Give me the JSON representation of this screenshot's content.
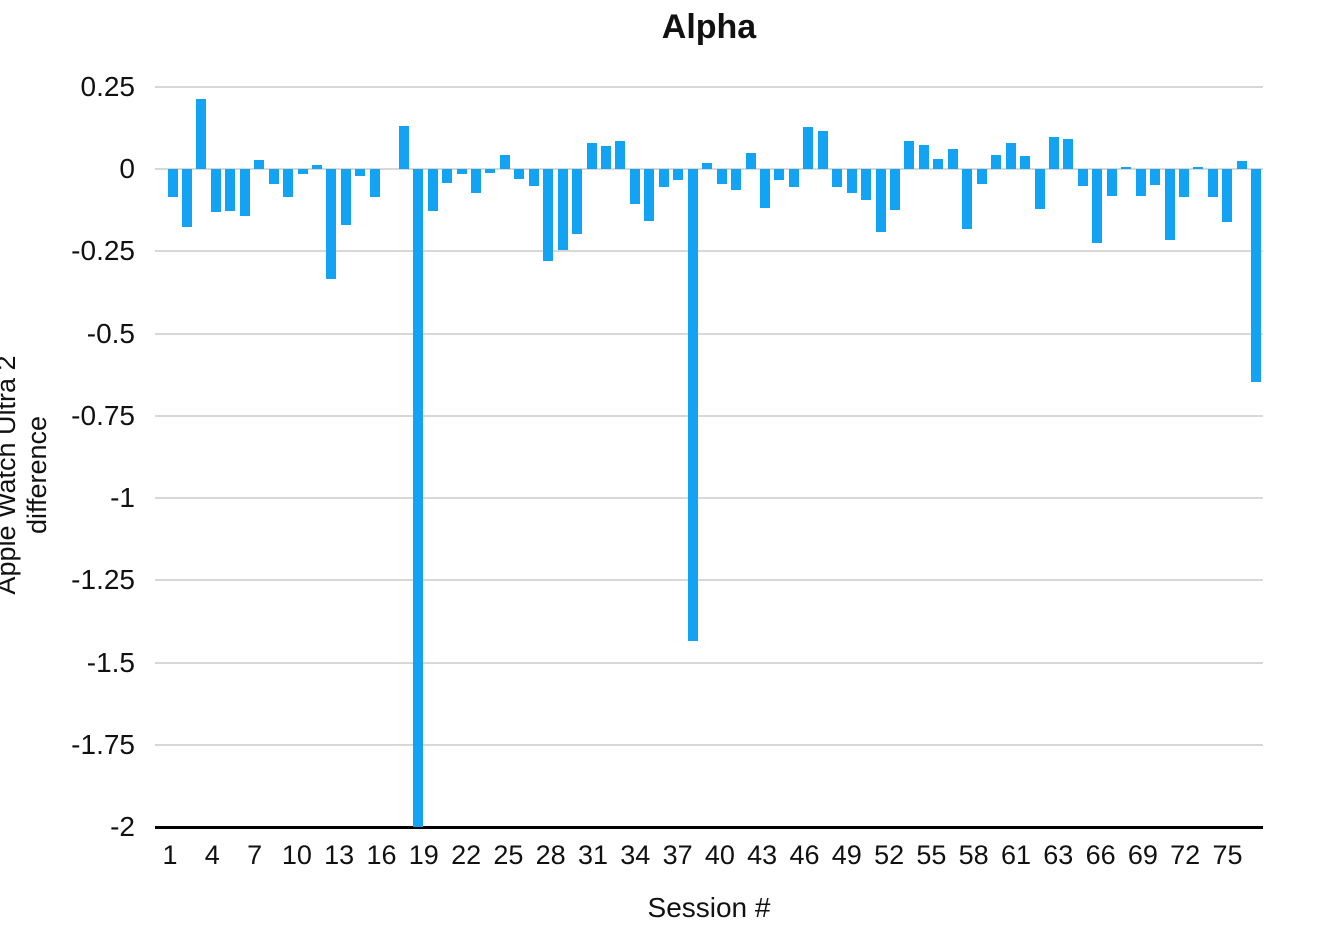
{
  "chart_data": {
    "type": "bar",
    "title": "Alpha",
    "xlabel": "Session #",
    "ylabel": "Apple Watch Ultra 2 difference",
    "ylim": [
      -2,
      0.25
    ],
    "ytick_step": 0.25,
    "y_tick_labels": [
      "0.25",
      "0",
      "-0.25",
      "-0.5",
      "-0.75",
      "-1",
      "-1.25",
      "-1.5",
      "-1.75",
      "-2"
    ],
    "x_tick_labels": [
      "1",
      "4",
      "7",
      "10",
      "13",
      "16",
      "19",
      "22",
      "25",
      "28",
      "31",
      "34",
      "37",
      "40",
      "43",
      "46",
      "49",
      "52",
      "55",
      "58",
      "61",
      "63",
      "66",
      "69",
      "72",
      "75"
    ],
    "grid": true,
    "legend": "none",
    "bar_color": "#12a3f2",
    "gridline_color": "#d8d8d8",
    "axis_line_color": "#000000",
    "values": [
      -0.085,
      -0.177,
      0.215,
      -0.13,
      -0.127,
      -0.142,
      0.028,
      -0.046,
      -0.083,
      -0.015,
      0.012,
      -0.334,
      -0.17,
      -0.022,
      -0.083,
      0.0,
      0.13,
      -2.0,
      -0.128,
      -0.043,
      -0.015,
      -0.073,
      -0.012,
      0.044,
      -0.03,
      -0.05,
      -0.28,
      -0.245,
      -0.197,
      0.079,
      0.072,
      0.085,
      -0.105,
      -0.156,
      -0.055,
      -0.032,
      -1.433,
      0.02,
      -0.046,
      -0.063,
      0.05,
      -0.118,
      -0.032,
      -0.055,
      0.128,
      0.115,
      -0.053,
      -0.073,
      -0.093,
      -0.192,
      -0.123,
      0.085,
      0.075,
      0.03,
      0.06,
      -0.182,
      -0.045,
      0.044,
      0.081,
      0.039,
      -0.12,
      0.097,
      0.091,
      -0.051,
      -0.225,
      -0.081,
      0.008,
      -0.081,
      -0.048,
      -0.215,
      -0.085,
      0.008,
      -0.085,
      -0.159,
      0.025,
      -0.646
    ]
  }
}
